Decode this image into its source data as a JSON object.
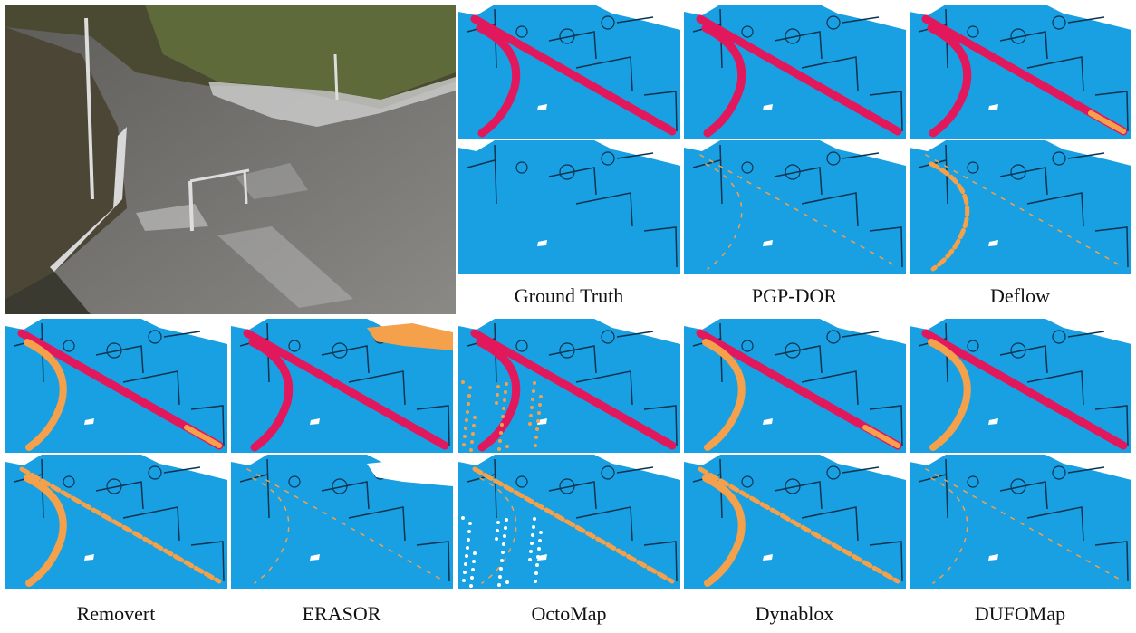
{
  "top_labels": [
    "Ground Truth",
    "PGP-DOR",
    "Deflow"
  ],
  "bottom_labels": [
    "Removert",
    "ERASOR",
    "OctoMap",
    "Dynablox",
    "DUFOMap"
  ]
}
